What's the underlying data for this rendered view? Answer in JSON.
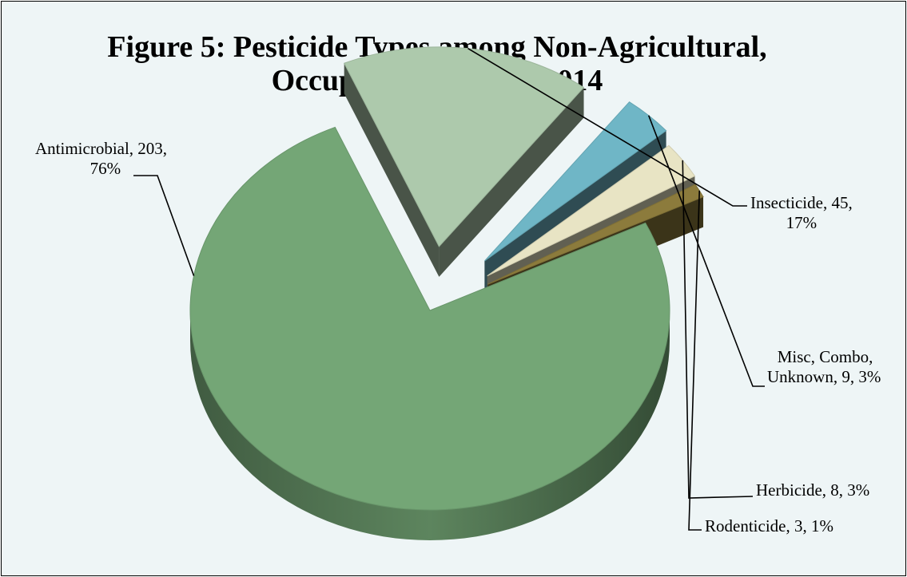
{
  "chart_data": {
    "type": "pie",
    "style": "3d-exploded",
    "title_line1": "Figure 5: Pesticide Types among Non-Agricultural,",
    "title_line2": "Occupational Cases, 2014",
    "slices": [
      {
        "name": "Antimicrobial",
        "value": 203,
        "percent": "76%",
        "color": "#74a676",
        "label_line1": "Antimicrobial, 203,",
        "label_line2": "76%"
      },
      {
        "name": "Insecticide",
        "value": 45,
        "percent": "17%",
        "color": "#adc9ac",
        "label_line1": "Insecticide, 45,",
        "label_line2": "17%"
      },
      {
        "name": "Misc, Combo, Unknown",
        "value": 9,
        "percent": "3%",
        "color": "#6fb6c6",
        "label_line1": "Misc, Combo,",
        "label_line2": "Unknown, 9, 3%"
      },
      {
        "name": "Herbicide",
        "value": 8,
        "percent": "3%",
        "color": "#e8e4c4",
        "label_line1": "Herbicide, 8, 3%",
        "label_line2": ""
      },
      {
        "name": "Rodenticide",
        "value": 3,
        "percent": "1%",
        "color": "#8c7b3c",
        "label_line1": "Rodenticide, 3, 1%",
        "label_line2": ""
      }
    ],
    "background_color": "#eef5f6",
    "legend": "none",
    "grid": false
  }
}
